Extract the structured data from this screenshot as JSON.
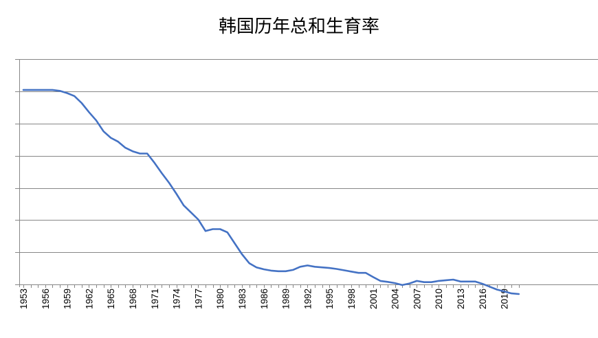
{
  "chart_data": {
    "type": "line",
    "title": "韩国历年总和生育率",
    "xlabel": "",
    "ylabel": "",
    "ylim": [
      0,
      7
    ],
    "y_tick_step": 1,
    "y_tick_labels_shown": false,
    "grid": "horizontal",
    "legend": "none",
    "line_color": "#4472C4",
    "grid_color": "#868686",
    "x_tick_labels": [
      "1953",
      "1956",
      "1959",
      "1962",
      "1965",
      "1968",
      "1971",
      "1974",
      "1977",
      "1980",
      "1983",
      "1986",
      "1989",
      "1992",
      "1995",
      "1998",
      "2001",
      "2004",
      "2007",
      "2010",
      "2013",
      "2016",
      "2019"
    ],
    "x": [
      1953,
      1954,
      1955,
      1956,
      1957,
      1958,
      1959,
      1960,
      1961,
      1962,
      1963,
      1964,
      1965,
      1966,
      1967,
      1968,
      1969,
      1970,
      1971,
      1972,
      1973,
      1974,
      1975,
      1976,
      1977,
      1978,
      1979,
      1980,
      1981,
      1982,
      1983,
      1984,
      1985,
      1986,
      1987,
      1988,
      1989,
      1990,
      1991,
      1992,
      1993,
      1994,
      1995,
      1996,
      1997,
      1998,
      1999,
      2000,
      2001,
      2002,
      2003,
      2004,
      2005,
      2006,
      2007,
      2008,
      2009,
      2010,
      2011,
      2012,
      2013,
      2014,
      2015,
      2016,
      2017,
      2018,
      2019,
      2020,
      2021
    ],
    "series": [
      {
        "values": [
          6.05,
          6.05,
          6.05,
          6.05,
          6.05,
          6.02,
          5.95,
          5.86,
          5.64,
          5.36,
          5.1,
          4.76,
          4.56,
          4.44,
          4.25,
          4.14,
          4.07,
          4.07,
          3.78,
          3.46,
          3.16,
          2.82,
          2.46,
          2.24,
          2.02,
          1.66,
          1.72,
          1.72,
          1.62,
          1.28,
          0.94,
          0.66,
          0.53,
          0.47,
          0.43,
          0.41,
          0.41,
          0.45,
          0.55,
          0.59,
          0.55,
          0.53,
          0.51,
          0.48,
          0.44,
          0.4,
          0.36,
          0.36,
          0.23,
          0.11,
          0.08,
          0.04,
          -0.02,
          0.03,
          0.11,
          0.07,
          0.07,
          0.11,
          0.13,
          0.15,
          0.09,
          0.09,
          0.09,
          0.02,
          -0.07,
          -0.16,
          -0.22,
          -0.28,
          -0.3
        ]
      }
    ]
  }
}
